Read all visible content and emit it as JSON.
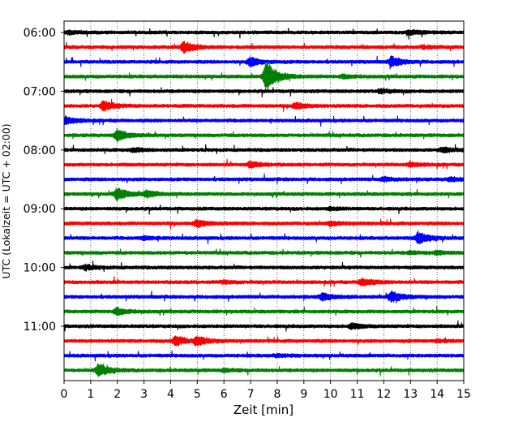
{
  "chart_data": {
    "type": "line",
    "title": "",
    "xlabel": "Zeit  [min]",
    "ylabel": "UTC (Lokalzeit = UTC + 02:00)",
    "xlim": [
      0,
      15
    ],
    "xticks": [
      0,
      1,
      2,
      3,
      4,
      5,
      6,
      7,
      8,
      9,
      10,
      11,
      12,
      13,
      14,
      15
    ],
    "xtick_labels": [
      "0",
      "1",
      "2",
      "3",
      "4",
      "5",
      "6",
      "7",
      "8",
      "9",
      "10",
      "11",
      "12",
      "13",
      "14",
      "15"
    ],
    "ytick_labels": [
      "06:00",
      "07:00",
      "08:00",
      "09:00",
      "10:00",
      "11:00"
    ],
    "grid": {
      "x": true,
      "y": false,
      "style": "dotted"
    },
    "color_cycle": [
      "#000000",
      "#ff0000",
      "#0000ff",
      "#008000"
    ],
    "traces": [
      {
        "start": "06:00",
        "events": [
          {
            "t": 0.2,
            "amp": 0.25
          },
          {
            "t": 13.0,
            "amp": 0.3
          }
        ]
      },
      {
        "start": "06:15",
        "events": [
          {
            "t": 4.5,
            "amp": 0.9
          },
          {
            "t": 13.5,
            "amp": 0.2
          }
        ]
      },
      {
        "start": "06:30",
        "events": [
          {
            "t": 7.0,
            "amp": 0.7
          },
          {
            "t": 12.3,
            "amp": 0.8
          }
        ]
      },
      {
        "start": "06:45",
        "events": [
          {
            "t": 7.6,
            "amp": 2.6
          },
          {
            "t": 10.5,
            "amp": 0.3
          }
        ]
      },
      {
        "start": "07:00",
        "events": [
          {
            "t": 11.9,
            "amp": 0.3
          }
        ]
      },
      {
        "start": "07:15",
        "events": [
          {
            "t": 1.5,
            "amp": 0.8
          },
          {
            "t": 8.7,
            "amp": 0.5
          }
        ]
      },
      {
        "start": "07:30",
        "events": [
          {
            "t": 0.05,
            "amp": 0.6
          }
        ]
      },
      {
        "start": "07:45",
        "events": [
          {
            "t": 2.0,
            "amp": 0.9
          }
        ]
      },
      {
        "start": "08:00",
        "events": [
          {
            "t": 2.6,
            "amp": 0.3
          },
          {
            "t": 14.2,
            "amp": 0.4
          }
        ]
      },
      {
        "start": "08:15",
        "events": [
          {
            "t": 7.0,
            "amp": 0.5
          },
          {
            "t": 13.0,
            "amp": 0.3
          }
        ]
      },
      {
        "start": "08:30",
        "events": [
          {
            "t": 12.0,
            "amp": 0.3
          },
          {
            "t": 14.5,
            "amp": 0.3
          }
        ]
      },
      {
        "start": "08:45",
        "events": [
          {
            "t": 2.0,
            "amp": 1.0
          },
          {
            "t": 3.1,
            "amp": 0.5
          }
        ]
      },
      {
        "start": "09:00",
        "events": [
          {
            "t": 10.0,
            "amp": 0.2
          }
        ]
      },
      {
        "start": "09:15",
        "events": [
          {
            "t": 5.0,
            "amp": 0.6
          },
          {
            "t": 10.0,
            "amp": 0.3
          }
        ]
      },
      {
        "start": "09:30",
        "events": [
          {
            "t": 13.3,
            "amp": 1.0
          },
          {
            "t": 3.0,
            "amp": 0.3
          }
        ]
      },
      {
        "start": "09:45",
        "events": [
          {
            "t": 14.0,
            "amp": 0.3
          },
          {
            "t": 13.0,
            "amp": 0.2
          }
        ]
      },
      {
        "start": "10:00",
        "events": [
          {
            "t": 0.8,
            "amp": 0.4
          }
        ]
      },
      {
        "start": "10:15",
        "events": [
          {
            "t": 11.2,
            "amp": 0.6
          },
          {
            "t": 6.0,
            "amp": 0.2
          }
        ]
      },
      {
        "start": "10:30",
        "events": [
          {
            "t": 9.7,
            "amp": 0.6
          },
          {
            "t": 12.3,
            "amp": 0.9
          }
        ]
      },
      {
        "start": "10:45",
        "events": [
          {
            "t": 2.0,
            "amp": 0.6
          }
        ]
      },
      {
        "start": "11:00",
        "events": [
          {
            "t": 10.8,
            "amp": 0.4
          }
        ]
      },
      {
        "start": "11:15",
        "events": [
          {
            "t": 4.2,
            "amp": 0.8
          },
          {
            "t": 5.0,
            "amp": 0.7
          },
          {
            "t": 14.0,
            "amp": 0.2
          }
        ]
      },
      {
        "start": "11:30",
        "events": [
          {
            "t": 8.0,
            "amp": 0.2
          }
        ]
      },
      {
        "start": "11:45",
        "events": [
          {
            "t": 1.3,
            "amp": 1.0
          },
          {
            "t": 6.0,
            "amp": 0.2
          }
        ]
      }
    ]
  }
}
